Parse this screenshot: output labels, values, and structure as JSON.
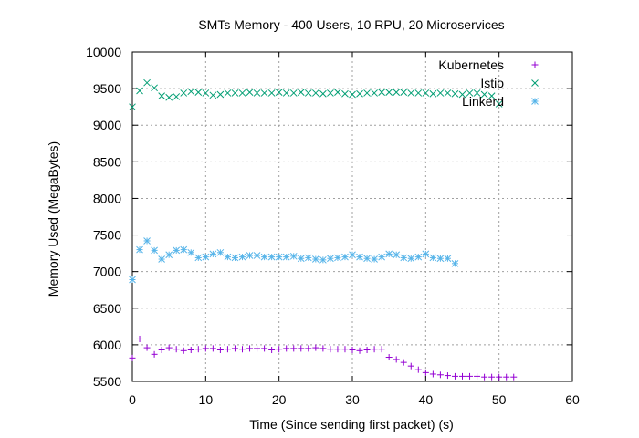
{
  "chart_data": {
    "type": "scatter",
    "title": "SMTs Memory - 400 Users, 10 RPU, 20 Microservices",
    "xlabel": "Time (Since sending first packet) (s)",
    "ylabel": "Memory Used (MegaBytes)",
    "xlim": [
      0,
      60
    ],
    "ylim": [
      5500,
      10000
    ],
    "xticks": [
      "0",
      "10",
      "20",
      "30",
      "40",
      "50",
      "60"
    ],
    "yticks": [
      "5500",
      "6000",
      "6500",
      "7000",
      "7500",
      "8000",
      "8500",
      "9000",
      "9500",
      "10000"
    ],
    "grid": true,
    "legend_position": "top-right",
    "series": [
      {
        "name": "Kubernetes",
        "color": "#9400d3",
        "marker": "plus",
        "x": [
          0,
          1,
          2,
          3,
          4,
          5,
          6,
          7,
          8,
          9,
          10,
          11,
          12,
          13,
          14,
          15,
          16,
          17,
          18,
          19,
          20,
          21,
          22,
          23,
          24,
          25,
          26,
          27,
          28,
          29,
          30,
          31,
          32,
          33,
          34,
          35,
          36,
          37,
          38,
          39,
          40,
          41,
          42,
          43,
          44,
          45,
          46,
          47,
          48,
          49,
          50,
          51,
          52
        ],
        "y": [
          5820,
          6080,
          5960,
          5870,
          5930,
          5960,
          5940,
          5920,
          5930,
          5940,
          5950,
          5950,
          5930,
          5940,
          5950,
          5940,
          5950,
          5950,
          5950,
          5930,
          5940,
          5950,
          5950,
          5950,
          5950,
          5960,
          5950,
          5940,
          5940,
          5940,
          5930,
          5920,
          5930,
          5940,
          5940,
          5830,
          5800,
          5760,
          5710,
          5660,
          5620,
          5600,
          5590,
          5580,
          5570,
          5570,
          5570,
          5570,
          5560,
          5560,
          5560,
          5560,
          5560
        ]
      },
      {
        "name": "Istio",
        "color": "#009e73",
        "marker": "cross",
        "x": [
          0,
          1,
          2,
          3,
          4,
          5,
          6,
          7,
          8,
          9,
          10,
          11,
          12,
          13,
          14,
          15,
          16,
          17,
          18,
          19,
          20,
          21,
          22,
          23,
          24,
          25,
          26,
          27,
          28,
          29,
          30,
          31,
          32,
          33,
          34,
          35,
          36,
          37,
          38,
          39,
          40,
          41,
          42,
          43,
          44,
          45,
          46,
          47,
          48,
          49,
          50
        ],
        "y": [
          9250,
          9470,
          9580,
          9510,
          9400,
          9380,
          9390,
          9440,
          9460,
          9450,
          9440,
          9410,
          9420,
          9440,
          9440,
          9440,
          9450,
          9440,
          9440,
          9440,
          9450,
          9440,
          9440,
          9450,
          9440,
          9440,
          9430,
          9440,
          9450,
          9430,
          9420,
          9430,
          9440,
          9440,
          9450,
          9450,
          9450,
          9450,
          9440,
          9440,
          9440,
          9430,
          9440,
          9440,
          9430,
          9420,
          9440,
          9440,
          9420,
          9400,
          9290
        ]
      },
      {
        "name": "Linkerd",
        "color": "#56b4e9",
        "marker": "star",
        "x": [
          0,
          1,
          2,
          3,
          4,
          5,
          6,
          7,
          8,
          9,
          10,
          11,
          12,
          13,
          14,
          15,
          16,
          17,
          18,
          19,
          20,
          21,
          22,
          23,
          24,
          25,
          26,
          27,
          28,
          29,
          30,
          31,
          32,
          33,
          34,
          35,
          36,
          37,
          38,
          39,
          40,
          41,
          42,
          43,
          44
        ],
        "y": [
          6890,
          7300,
          7420,
          7290,
          7170,
          7230,
          7290,
          7300,
          7260,
          7190,
          7200,
          7240,
          7260,
          7200,
          7190,
          7200,
          7220,
          7220,
          7200,
          7200,
          7200,
          7200,
          7210,
          7180,
          7190,
          7170,
          7160,
          7180,
          7190,
          7200,
          7230,
          7200,
          7180,
          7170,
          7200,
          7240,
          7230,
          7190,
          7180,
          7200,
          7240,
          7190,
          7180,
          7180,
          7110
        ]
      }
    ]
  }
}
